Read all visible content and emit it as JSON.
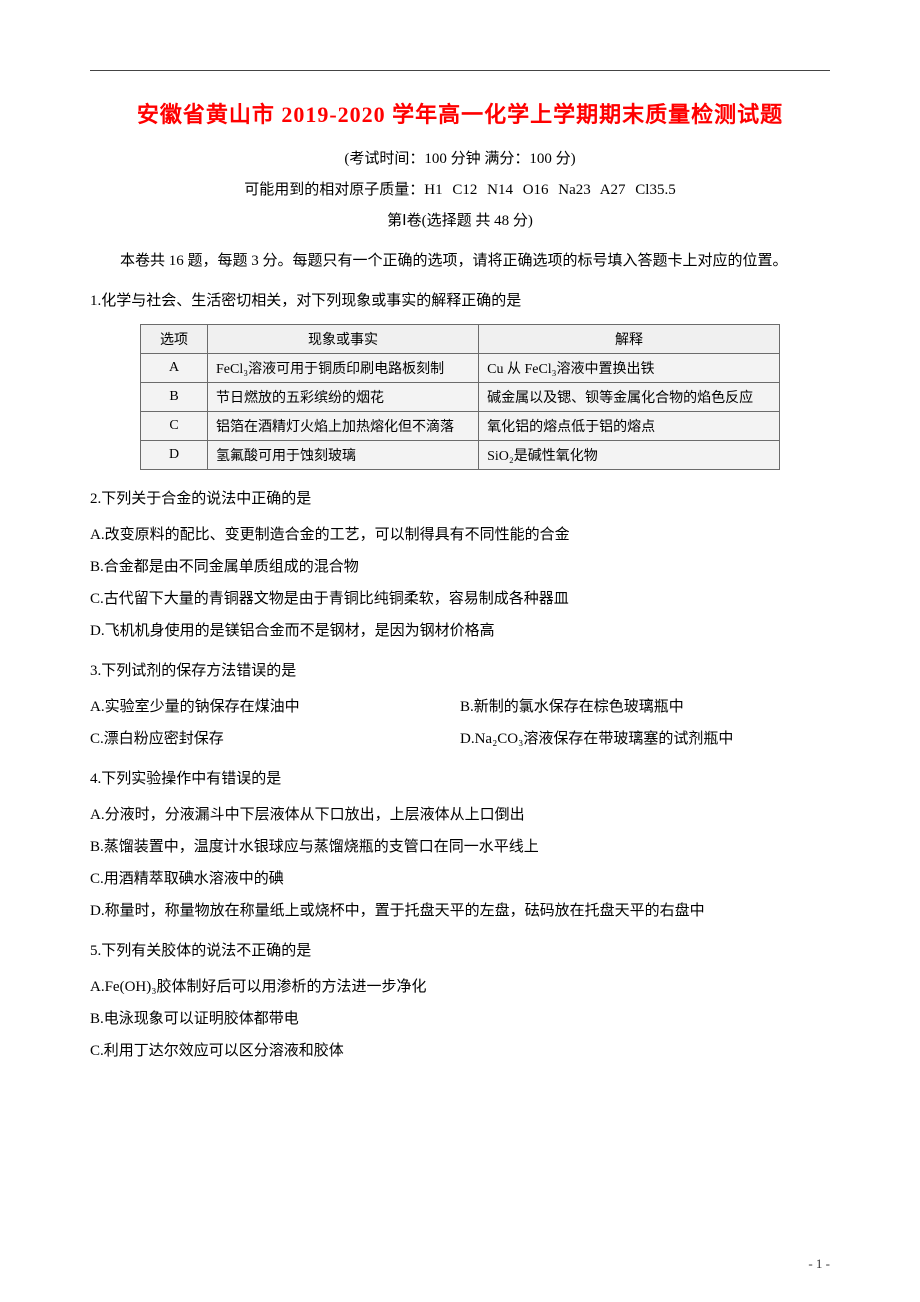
{
  "title": "安徽省黄山市 2019-2020 学年高一化学上学期期末质量检测试题",
  "exam_info": "(考试时间：100 分钟  满分：100 分)",
  "atomic_mass": "可能用到的相对原子质量：H1   C12   N14   O16   Na23   A27   Cl35.5",
  "part_label": "第Ⅰ卷(选择题  共 48 分)",
  "instructions": "本卷共 16 题，每题 3 分。每题只有一个正确的选项，请将正确选项的标号填入答题卡上对应的位置。",
  "page_num": "- 1 -",
  "q1": {
    "stem": "1.化学与社会、生活密切相关，对下列现象或事实的解释正确的是",
    "headers": [
      "选项",
      "现象或事实",
      "解释"
    ],
    "rows": [
      [
        "A",
        "FeCl₃溶液可用于铜质印刷电路板刻制",
        "Cu 从 FeCl₃溶液中置换出铁"
      ],
      [
        "B",
        "节日燃放的五彩缤纷的烟花",
        "碱金属以及锶、钡等金属化合物的焰色反应"
      ],
      [
        "C",
        "铝箔在酒精灯火焰上加热熔化但不滴落",
        "氧化铝的熔点低于铝的熔点"
      ],
      [
        "D",
        "氢氟酸可用于蚀刻玻璃",
        "SiO₂是碱性氧化物"
      ]
    ]
  },
  "q2": {
    "stem": "2.下列关于合金的说法中正确的是",
    "A": "A.改变原料的配比、变更制造合金的工艺，可以制得具有不同性能的合金",
    "B": "B.合金都是由不同金属单质组成的混合物",
    "C": "C.古代留下大量的青铜器文物是由于青铜比纯铜柔软，容易制成各种器皿",
    "D": "D.飞机机身使用的是镁铝合金而不是钢材，是因为钢材价格高"
  },
  "q3": {
    "stem": "3.下列试剂的保存方法错误的是",
    "A": "A.实验室少量的钠保存在煤油中",
    "B": "B.新制的氯水保存在棕色玻璃瓶中",
    "C": "C.漂白粉应密封保存",
    "D": "D.Na₂CO₃溶液保存在带玻璃塞的试剂瓶中"
  },
  "q4": {
    "stem": "4.下列实验操作中有错误的是",
    "A": "A.分液时，分液漏斗中下层液体从下口放出，上层液体从上口倒出",
    "B": "B.蒸馏装置中，温度计水银球应与蒸馏烧瓶的支管口在同一水平线上",
    "C": "C.用酒精萃取碘水溶液中的碘",
    "D": "D.称量时，称量物放在称量纸上或烧杯中，置于托盘天平的左盘，砝码放在托盘天平的右盘中"
  },
  "q5": {
    "stem": "5.下列有关胶体的说法不正确的是",
    "A": "A.Fe(OH)₃胶体制好后可以用渗析的方法进一步净化",
    "B": "B.电泳现象可以证明胶体都带电",
    "C": "C.利用丁达尔效应可以区分溶液和胶体"
  }
}
